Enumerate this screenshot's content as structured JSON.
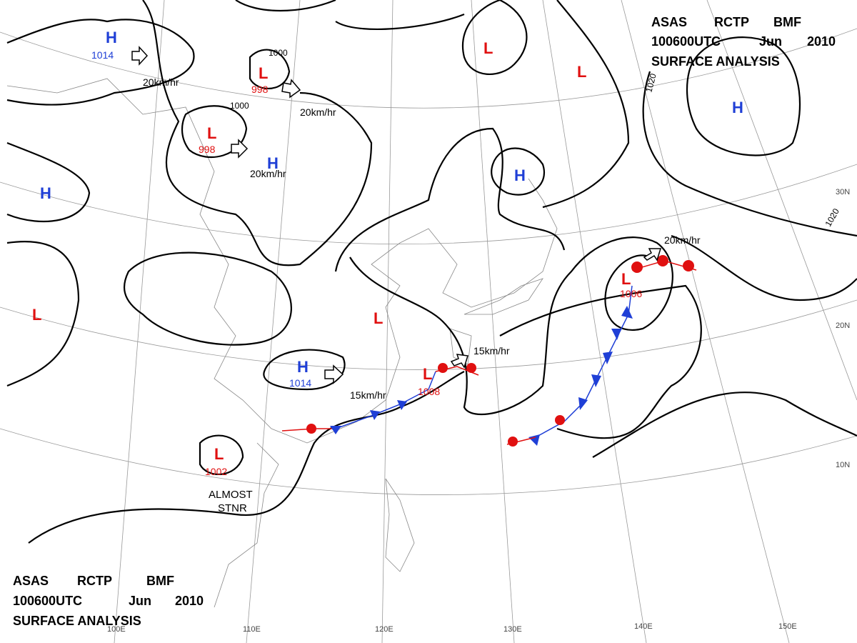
{
  "header_top": {
    "line1": [
      "ASAS",
      "RCTP",
      "BMF"
    ],
    "line2": [
      "100600UTC",
      "Jun",
      "2010"
    ],
    "line3": "SURFACE ANALYSIS"
  },
  "header_bottom": {
    "line1": [
      "ASAS",
      "RCTP",
      "BMF"
    ],
    "line2": [
      "100600UTC",
      "Jun",
      "2010"
    ],
    "line3": "SURFACE ANALYSIS"
  },
  "centers": [
    {
      "label": "H",
      "pressure": "1014"
    },
    {
      "label": "L",
      "pressure": "998"
    },
    {
      "label": "L",
      "pressure": "998"
    },
    {
      "label": "H"
    },
    {
      "label": "H"
    },
    {
      "label": "L"
    },
    {
      "label": "L"
    },
    {
      "label": "H",
      "pressure": "1014"
    },
    {
      "label": "L",
      "pressure": "1008"
    },
    {
      "label": "L",
      "pressure": "1002"
    },
    {
      "label": "L"
    },
    {
      "label": "L"
    },
    {
      "label": "H"
    },
    {
      "label": "H"
    },
    {
      "label": "L",
      "pressure": "1006"
    }
  ],
  "motions": [
    "20km/hr",
    "20km/hr",
    "20km/hr",
    "20km/hr",
    "15km/hr",
    "15km/hr"
  ],
  "isobar_labels": [
    "1000",
    "1000",
    "1020",
    "1020"
  ],
  "longitudes": [
    "100E",
    "110E",
    "120E",
    "130E",
    "140E",
    "150E"
  ],
  "latitudes": [
    "30N",
    "20N",
    "10N"
  ],
  "notes": [
    "ALMOST",
    "STNR"
  ]
}
